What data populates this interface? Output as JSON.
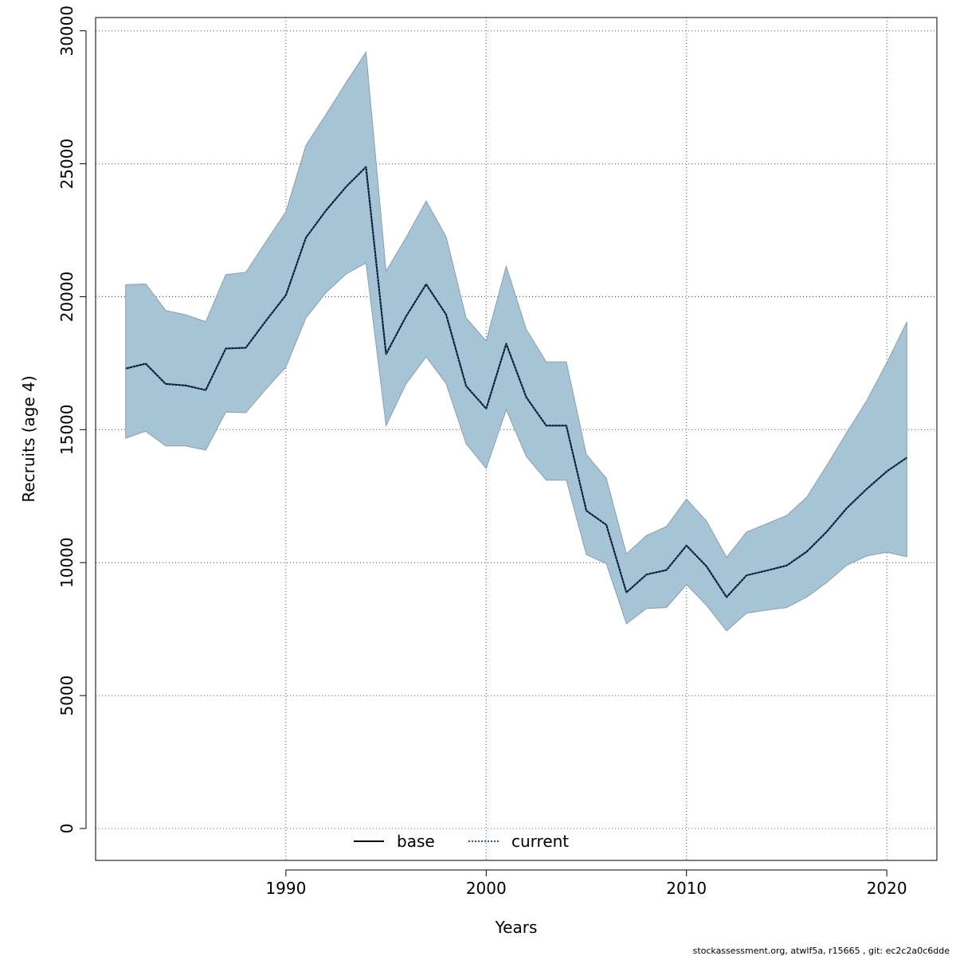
{
  "chart_data": {
    "type": "area",
    "xlabel": "Years",
    "ylabel": "Recruits (age 4)",
    "xlim": [
      1980.5,
      2022.5
    ],
    "ylim": [
      -1200,
      30500
    ],
    "x_ticks": [
      1990,
      2000,
      2010,
      2020
    ],
    "x_tick_labels": [
      "1990",
      "2000",
      "2010",
      "2020"
    ],
    "y_ticks": [
      0,
      5000,
      10000,
      15000,
      20000,
      25000,
      30000
    ],
    "y_tick_labels": [
      "0",
      "5000",
      "10000",
      "15000",
      "20000",
      "25000",
      "30000"
    ],
    "grid": true,
    "legend_position": "bottom",
    "band_color": "#a6c4d5",
    "band_edge_color": "#8aa0ac",
    "years": [
      1982,
      1983,
      1984,
      1985,
      1986,
      1987,
      1988,
      1989,
      1990,
      1991,
      1992,
      1993,
      1994,
      1995,
      1996,
      1997,
      1998,
      1999,
      2000,
      2001,
      2002,
      2003,
      2004,
      2005,
      2006,
      2007,
      2008,
      2009,
      2010,
      2011,
      2012,
      2013,
      2014,
      2015,
      2016,
      2017,
      2018,
      2019,
      2020,
      2021
    ],
    "band_upper": [
      20450,
      20480,
      19480,
      19320,
      19060,
      20830,
      20920,
      22060,
      23200,
      25690,
      26850,
      28050,
      29200,
      20960,
      22220,
      23600,
      22260,
      19200,
      18340,
      21150,
      18780,
      17550,
      17550,
      14070,
      13170,
      10330,
      11020,
      11360,
      12390,
      11560,
      10200,
      11150,
      11460,
      11770,
      12460,
      13650,
      14900,
      16090,
      17520,
      19050
    ],
    "band_lower": [
      14680,
      14940,
      14390,
      14390,
      14230,
      15660,
      15640,
      16520,
      17360,
      19200,
      20150,
      20850,
      21270,
      15150,
      16720,
      17740,
      16730,
      14470,
      13540,
      15750,
      13990,
      13100,
      13100,
      10300,
      9960,
      7700,
      8270,
      8310,
      9170,
      8390,
      7430,
      8100,
      8210,
      8310,
      8700,
      9250,
      9900,
      10250,
      10390,
      10220
    ],
    "series": [
      {
        "name": "base",
        "style": "solid",
        "color": "#000000",
        "values": [
          17300,
          17480,
          16720,
          16660,
          16490,
          18050,
          18080,
          19090,
          20060,
          22220,
          23240,
          24130,
          24880,
          17840,
          19260,
          20470,
          19330,
          16640,
          15790,
          18230,
          16220,
          15150,
          15150,
          11950,
          11420,
          8880,
          9550,
          9720,
          10640,
          9860,
          8700,
          9520,
          9700,
          9890,
          10410,
          11160,
          12050,
          12770,
          13430,
          13950
        ]
      },
      {
        "name": "current",
        "style": "dotted",
        "color": "#1a5a8a",
        "values": [
          17300,
          17480,
          16720,
          16660,
          16490,
          18050,
          18080,
          19090,
          20060,
          22220,
          23240,
          24130,
          24880,
          17840,
          19260,
          20470,
          19330,
          16640,
          15790,
          18230,
          16220,
          15150,
          15150,
          11950,
          11420,
          8880,
          9550,
          9720,
          10640,
          9860,
          8700,
          9520,
          9700,
          9890,
          10410,
          11160,
          12050,
          12770,
          13430,
          13950
        ]
      }
    ],
    "legend": [
      {
        "label": "base",
        "style": "solid",
        "color": "#000000"
      },
      {
        "label": "current",
        "style": "dotted",
        "color": "#1a5a8a"
      }
    ]
  },
  "footer": "stockassessment.org, atwlf5a, r15665 , git: ec2c2a0c6dde"
}
